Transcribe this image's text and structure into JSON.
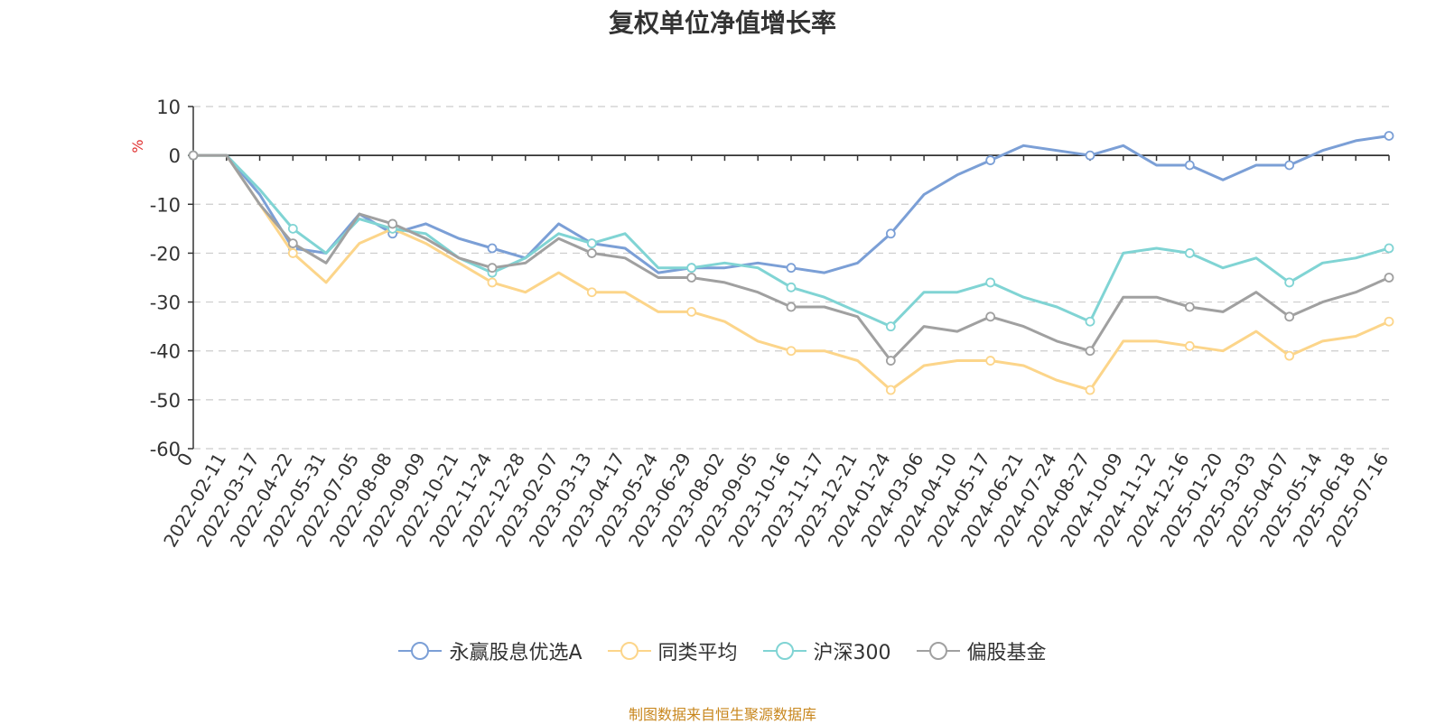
{
  "chart_data": {
    "type": "line",
    "title": "复权单位净值增长率",
    "ylabel": "%",
    "ylim": [
      -60,
      10
    ],
    "y_ticks": [
      10,
      0,
      -10,
      -20,
      -30,
      -40,
      -50,
      -60
    ],
    "x_origin_label": "0",
    "categories": [
      "2022-02-11",
      "2022-03-17",
      "2022-04-22",
      "2022-05-31",
      "2022-07-05",
      "2022-08-08",
      "2022-09-09",
      "2022-10-21",
      "2022-11-24",
      "2022-12-28",
      "2023-02-07",
      "2023-03-13",
      "2023-04-17",
      "2023-05-24",
      "2023-06-29",
      "2023-08-02",
      "2023-09-05",
      "2023-10-16",
      "2023-11-17",
      "2023-12-21",
      "2024-01-24",
      "2024-03-06",
      "2024-04-10",
      "2024-05-17",
      "2024-06-21",
      "2024-07-24",
      "2024-08-27",
      "2024-10-09",
      "2024-11-12",
      "2024-12-16",
      "2025-01-20",
      "2025-03-03",
      "2025-04-07",
      "2025-05-14",
      "2025-06-18",
      "2025-07-16"
    ],
    "grid": true,
    "legend_position": "bottom",
    "series": [
      {
        "name": "永赢股息优选A",
        "color": "#7b9fd6",
        "values": [
          0,
          -8,
          -19,
          -20,
          -12,
          -16,
          -14,
          -17,
          -19,
          -21,
          -14,
          -18,
          -19,
          -24,
          -23,
          -23,
          -22,
          -23,
          -24,
          -22,
          -16,
          -8,
          -4,
          -1,
          2,
          1,
          0,
          2,
          -2,
          -2,
          -5,
          -2,
          -2,
          1,
          3,
          4
        ]
      },
      {
        "name": "同类平均",
        "color": "#fcd58a",
        "values": [
          0,
          -10,
          -20,
          -26,
          -18,
          -15,
          -18,
          -22,
          -26,
          -28,
          -24,
          -28,
          -28,
          -32,
          -32,
          -34,
          -38,
          -40,
          -40,
          -42,
          -48,
          -43,
          -42,
          -42,
          -43,
          -46,
          -48,
          -38,
          -38,
          -39,
          -40,
          -36,
          -41,
          -38,
          -37,
          -34
        ]
      },
      {
        "name": "沪深300",
        "color": "#80d4d4",
        "values": [
          0,
          -7,
          -15,
          -20,
          -13,
          -15,
          -16,
          -21,
          -24,
          -21,
          -16,
          -18,
          -16,
          -23,
          -23,
          -22,
          -23,
          -27,
          -29,
          -32,
          -35,
          -28,
          -28,
          -26,
          -29,
          -31,
          -34,
          -20,
          -19,
          -20,
          -23,
          -21,
          -26,
          -22,
          -21,
          -19
        ]
      },
      {
        "name": "偏股基金",
        "color": "#a0a0a0",
        "values": [
          0,
          -10,
          -18,
          -22,
          -12,
          -14,
          -17,
          -21,
          -23,
          -22,
          -17,
          -20,
          -21,
          -25,
          -25,
          -26,
          -28,
          -31,
          -31,
          -33,
          -42,
          -35,
          -36,
          -33,
          -35,
          -38,
          -40,
          -29,
          -29,
          -31,
          -32,
          -28,
          -33,
          -30,
          -28,
          -25
        ]
      }
    ]
  },
  "source_text": "制图数据来自恒生聚源数据库"
}
